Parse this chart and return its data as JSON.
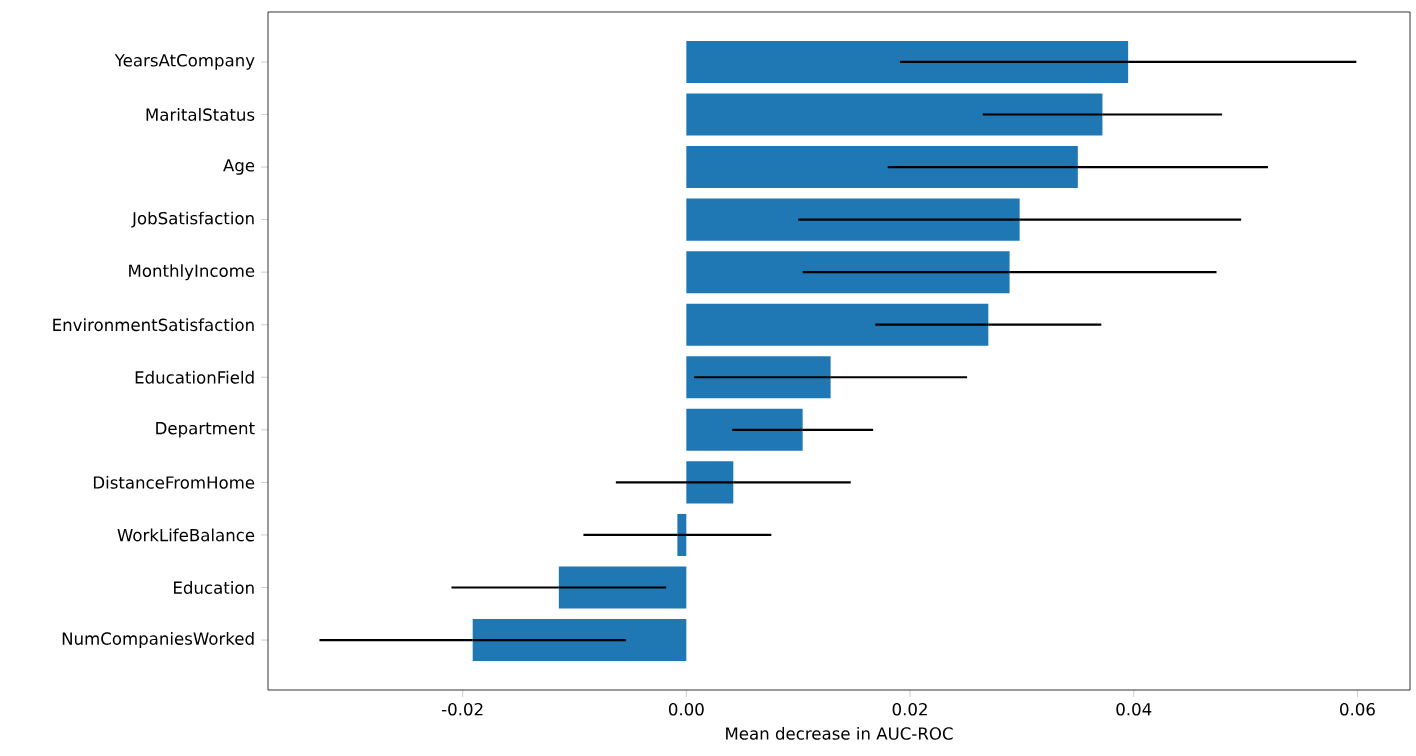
{
  "chart_data": {
    "type": "bar",
    "orientation": "horizontal",
    "xlabel": "Mean decrease in AUC-ROC",
    "categories": [
      "YearsAtCompany",
      "MaritalStatus",
      "Age",
      "JobSatisfaction",
      "MonthlyIncome",
      "EnvironmentSatisfaction",
      "EducationField",
      "Department",
      "DistanceFromHome",
      "WorkLifeBalance",
      "Education",
      "NumCompaniesWorked"
    ],
    "values": [
      0.0395,
      0.0372,
      0.035,
      0.0298,
      0.0289,
      0.027,
      0.0129,
      0.0104,
      0.0042,
      -0.0008,
      -0.0114,
      -0.0191
    ],
    "errors": [
      0.0204,
      0.0107,
      0.017,
      0.0198,
      0.0185,
      0.0101,
      0.0122,
      0.0063,
      0.0105,
      0.0084,
      0.0096,
      0.0137
    ],
    "color": "#1f77b4",
    "xlim": [
      -0.0374,
      0.0647
    ],
    "xticks": [
      -0.02,
      {
        "value": 0,
        "label": "0.00"
      },
      0.02,
      0.04,
      0.06
    ]
  }
}
